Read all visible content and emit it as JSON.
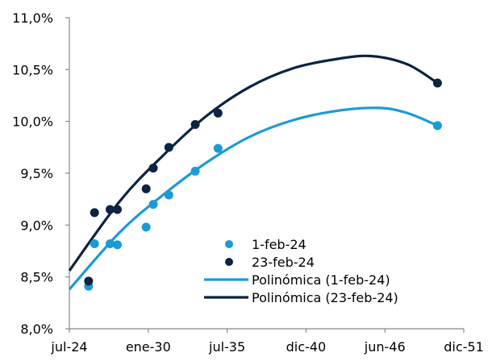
{
  "chart_data": {
    "type": "scatter",
    "title": "",
    "xlabel": "",
    "ylabel": "",
    "x_tick_labels": [
      "jul-24",
      "ene-30",
      "jul-35",
      "dic-40",
      "jun-46",
      "dic-51"
    ],
    "y_tick_labels": [
      "8,0%",
      "8,5%",
      "9,0%",
      "9,5%",
      "10,0%",
      "10,5%",
      "11,0%"
    ],
    "xlim": [
      "2024-07-01",
      "2051-12-01"
    ],
    "ylim": [
      8.0,
      11.0
    ],
    "grid": false,
    "legend_position": "bottom-center",
    "series": [
      {
        "name": "1-feb-24",
        "kind": "scatter",
        "color": "#1b9ad6",
        "points": [
          {
            "x": "2025-11-01",
            "y": 8.41
          },
          {
            "x": "2026-04-01",
            "y": 8.82
          },
          {
            "x": "2027-05-01",
            "y": 8.82
          },
          {
            "x": "2027-11-01",
            "y": 8.81
          },
          {
            "x": "2029-11-01",
            "y": 8.98
          },
          {
            "x": "2030-05-01",
            "y": 9.2
          },
          {
            "x": "2031-06-01",
            "y": 9.29
          },
          {
            "x": "2033-04-01",
            "y": 9.52
          },
          {
            "x": "2034-11-01",
            "y": 9.74
          },
          {
            "x": "2050-02-01",
            "y": 9.96
          }
        ]
      },
      {
        "name": "23-feb-24",
        "kind": "scatter",
        "color": "#0c2341",
        "points": [
          {
            "x": "2025-11-01",
            "y": 8.46
          },
          {
            "x": "2026-04-01",
            "y": 9.12
          },
          {
            "x": "2027-05-01",
            "y": 9.15
          },
          {
            "x": "2027-11-01",
            "y": 9.15
          },
          {
            "x": "2029-11-01",
            "y": 9.35
          },
          {
            "x": "2030-05-01",
            "y": 9.55
          },
          {
            "x": "2031-06-01",
            "y": 9.75
          },
          {
            "x": "2033-04-01",
            "y": 9.97
          },
          {
            "x": "2034-11-01",
            "y": 10.08
          },
          {
            "x": "2050-02-01",
            "y": 10.37
          }
        ]
      },
      {
        "name": "Polinómica (1-feb-24)",
        "kind": "line",
        "color": "#1b9ad6",
        "points": [
          {
            "x": "2024-07-01",
            "y": 8.38
          },
          {
            "x": "2028-01-01",
            "y": 8.93
          },
          {
            "x": "2031-01-01",
            "y": 9.29
          },
          {
            "x": "2034-01-01",
            "y": 9.6
          },
          {
            "x": "2037-01-01",
            "y": 9.85
          },
          {
            "x": "2040-01-01",
            "y": 10.01
          },
          {
            "x": "2043-01-01",
            "y": 10.1
          },
          {
            "x": "2046-01-01",
            "y": 10.13
          },
          {
            "x": "2048-01-01",
            "y": 10.08
          },
          {
            "x": "2050-02-01",
            "y": 9.96
          }
        ]
      },
      {
        "name": "Polinómica (23-feb-24)",
        "kind": "line",
        "color": "#0c2341",
        "points": [
          {
            "x": "2024-07-01",
            "y": 8.56
          },
          {
            "x": "2028-01-01",
            "y": 9.23
          },
          {
            "x": "2031-01-01",
            "y": 9.67
          },
          {
            "x": "2034-01-01",
            "y": 10.05
          },
          {
            "x": "2037-01-01",
            "y": 10.33
          },
          {
            "x": "2040-01-01",
            "y": 10.51
          },
          {
            "x": "2043-01-01",
            "y": 10.6
          },
          {
            "x": "2045-07-01",
            "y": 10.63
          },
          {
            "x": "2048-01-01",
            "y": 10.55
          },
          {
            "x": "2050-02-01",
            "y": 10.37
          }
        ]
      }
    ]
  }
}
